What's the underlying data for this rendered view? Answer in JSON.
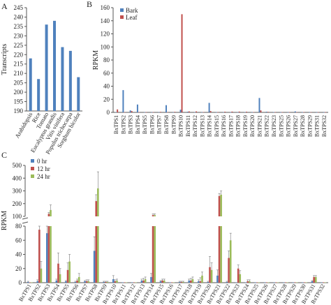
{
  "panels": {
    "A": {
      "letter": "A"
    },
    "B": {
      "letter": "B"
    },
    "C": {
      "letter": "C"
    }
  },
  "chart_data": [
    {
      "panel": "A",
      "type": "bar",
      "title": "",
      "xlabel": "",
      "ylabel": "Transcripts",
      "ylim": [
        190,
        245
      ],
      "yticks": [
        190,
        195,
        200,
        205,
        210,
        215,
        220,
        225,
        230,
        235,
        240,
        245
      ],
      "categories": [
        "Arabidopsis",
        "Rice",
        "Tomato",
        "Eucalyptus grandis",
        "Vitis vinifera",
        "Populus trichocarpa",
        "Sorghum bicolor"
      ],
      "series": [
        {
          "name": "",
          "color": "#4f81bd",
          "values": [
            218,
            207,
            236,
            238,
            224,
            222,
            208
          ]
        }
      ],
      "grid": false,
      "legend": "none"
    },
    {
      "panel": "B",
      "type": "bar",
      "title": "",
      "xlabel": "",
      "ylabel": "RPKM",
      "ylim": [
        0,
        160
      ],
      "yticks": [
        0,
        20,
        40,
        60,
        80,
        100,
        120,
        140,
        160
      ],
      "categories": [
        "BxTPS1",
        "BxTPS2",
        "BxTPS3",
        "BxTPS4",
        "BxTPS5",
        "BxTPS6",
        "BxTPS7",
        "BxTPS8",
        "BxTPS9",
        "BxTPS10",
        "BxTPS11",
        "BxTPS12",
        "BxTPS13",
        "BxTPS14",
        "BxTPS15",
        "BxTPS16",
        "BxTPS17",
        "BxTPS18",
        "BxTPS19",
        "BxTPS20",
        "BxTPS21",
        "BxTPS22",
        "BxTPS23",
        "BxTPS25",
        "BxTPS26",
        "BxTPS27",
        "BxTPS28",
        "BxTPS29",
        "BxTPS31",
        "BxTPS32"
      ],
      "series": [
        {
          "name": "Bark",
          "color": "#4f81bd",
          "values": [
            0.5,
            34,
            3,
            12,
            0.3,
            0.3,
            0.5,
            11,
            0.2,
            4,
            1,
            0.3,
            0.3,
            14.5,
            0.3,
            0.3,
            0.3,
            0.3,
            0.5,
            0.3,
            22,
            1,
            0.5,
            0.2,
            0.2,
            1.5,
            0.3,
            0.2,
            0.2,
            0.2
          ]
        },
        {
          "name": "Leaf",
          "color": "#c0504d",
          "values": [
            4.5,
            0.3,
            2,
            0.5,
            0.3,
            0.3,
            0.8,
            0.3,
            0.8,
            150,
            1.5,
            1.5,
            0.5,
            2,
            0.3,
            1,
            1.2,
            1.2,
            1,
            0.5,
            3,
            0.8,
            0.3,
            0.3,
            0.3,
            0.3,
            0.5,
            0.3,
            0.3,
            0.3
          ]
        }
      ],
      "grid": false,
      "legend": "top-left"
    },
    {
      "panel": "C",
      "type": "bar",
      "title": "",
      "xlabel": "",
      "ylabel": "RPKM",
      "y_break": {
        "lower": [
          0,
          80
        ],
        "upper": [
          100,
          500
        ]
      },
      "yticks_lower": [
        0,
        20,
        40,
        60,
        80
      ],
      "yticks_upper": [
        100,
        200,
        300,
        400,
        500
      ],
      "categories": [
        "BxTPS1",
        "BxTPS2",
        "BxTPS3",
        "BxTPS4",
        "BxTPS5",
        "BxTPS6",
        "BxTPS7",
        "BxTPS8",
        "BxTPS9",
        "BxTPS10",
        "BxTPS11",
        "BxTPS12",
        "BxTPS13",
        "BxTPS14",
        "BxTPS15",
        "BxTPS16",
        "BxTPS17",
        "BxTPS18",
        "BxTPS19",
        "BxTPS20",
        "BxTPS21",
        "BxTPS22",
        "BxTPS23",
        "BxTPS24",
        "BxTPS25",
        "BxTPS26",
        "BxTPS27",
        "BxTPS28",
        "BxTPS29",
        "BxTPS30",
        "BxTPS31",
        "BxTPS32"
      ],
      "series": [
        {
          "name": "0 hr",
          "color": "#4f81bd",
          "values": [
            1,
            2,
            70,
            3,
            2,
            1,
            2,
            45,
            1,
            5,
            0.5,
            0.5,
            3,
            8,
            2,
            0.5,
            1,
            3,
            2,
            1,
            10,
            1,
            0.5,
            0.5,
            0.3,
            0.3,
            0.3,
            0.3,
            0.3,
            0.3,
            2,
            0.3
          ],
          "errors": [
            1,
            2,
            20,
            2,
            1,
            1,
            1,
            20,
            1,
            5,
            0.5,
            0.5,
            2,
            5,
            1,
            0.5,
            1,
            2,
            2,
            1,
            8,
            1,
            0.5,
            0.5,
            0.3,
            0.3,
            0.3,
            0.3,
            0.3,
            0.3,
            1,
            0.3
          ]
        },
        {
          "name": "12 hr",
          "color": "#c0504d",
          "values": [
            0.5,
            75,
            120,
            27,
            18,
            3,
            2,
            220,
            1,
            2,
            0.5,
            0.5,
            3,
            110,
            3,
            0.5,
            1,
            3,
            2,
            22,
            260,
            35,
            20,
            2,
            0.5,
            0.5,
            0.5,
            0.5,
            0.5,
            0.5,
            8,
            0.5
          ],
          "errors": [
            0.5,
            5,
            10,
            15,
            10,
            2,
            2,
            50,
            1,
            2,
            0.5,
            0.5,
            3,
            10,
            2,
            0.5,
            1,
            3,
            5,
            15,
            20,
            10,
            5,
            2,
            0.5,
            0.5,
            0.5,
            0.5,
            0.5,
            0.5,
            2,
            0.5
          ]
        },
        {
          "name": "24 hr",
          "color": "#9bbb59",
          "values": [
            0.5,
            20,
            150,
            12,
            30,
            8,
            2,
            320,
            1,
            3,
            0.5,
            0.5,
            5,
            110,
            3,
            0.5,
            1,
            5,
            10,
            18,
            270,
            60,
            12,
            2,
            0.5,
            0.5,
            0.5,
            0.5,
            0.5,
            0.5,
            8,
            0.5
          ],
          "errors": [
            0.5,
            10,
            40,
            8,
            10,
            5,
            2,
            130,
            1,
            2,
            0.5,
            0.5,
            3,
            10,
            2,
            0.5,
            1,
            3,
            5,
            10,
            30,
            10,
            5,
            2,
            0.5,
            0.5,
            0.5,
            0.5,
            0.5,
            0.5,
            2,
            0.5
          ]
        }
      ],
      "grid": false,
      "legend": "top-left"
    }
  ]
}
